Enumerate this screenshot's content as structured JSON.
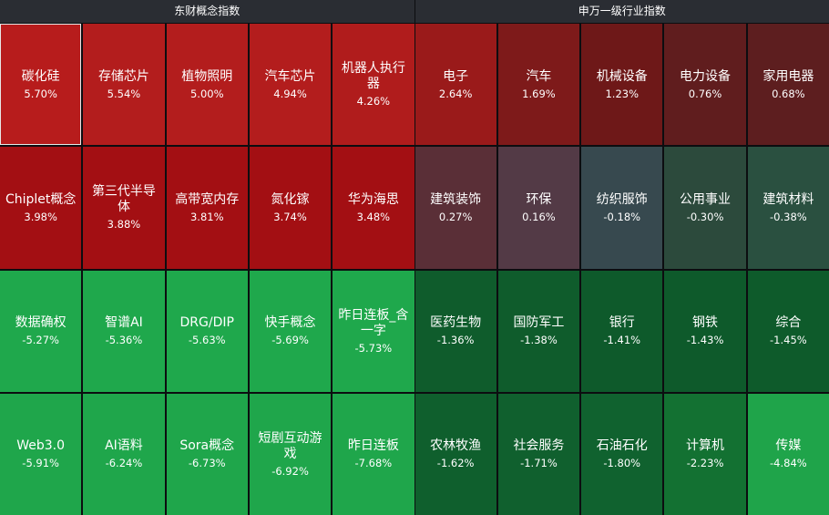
{
  "panels": [
    {
      "title": "东财概念指数",
      "tiles": [
        {
          "name": "碳化硅",
          "change": "5.70%",
          "color": "#b71c1c"
        },
        {
          "name": "存储芯片",
          "change": "5.54%",
          "color": "#b31d1d"
        },
        {
          "name": "植物照明",
          "change": "5.00%",
          "color": "#b31d1d"
        },
        {
          "name": "汽车芯片",
          "change": "4.94%",
          "color": "#b31d1d"
        },
        {
          "name": "机器人执行器",
          "change": "4.26%",
          "color": "#b01c1c"
        },
        {
          "name": "Chiplet概念",
          "change": "3.98%",
          "color": "#a30f13"
        },
        {
          "name": "第三代半导体",
          "change": "3.88%",
          "color": "#a30f13"
        },
        {
          "name": "高带宽内存",
          "change": "3.81%",
          "color": "#a30f13"
        },
        {
          "name": "氮化镓",
          "change": "3.74%",
          "color": "#a30f13"
        },
        {
          "name": "华为海思",
          "change": "3.48%",
          "color": "#a30f13"
        },
        {
          "name": "数据确权",
          "change": "-5.27%",
          "color": "#1fa84c"
        },
        {
          "name": "智谱AI",
          "change": "-5.36%",
          "color": "#1fa84c"
        },
        {
          "name": "DRG/DIP",
          "change": "-5.63%",
          "color": "#1fa84c"
        },
        {
          "name": "快手概念",
          "change": "-5.69%",
          "color": "#1fa84c"
        },
        {
          "name": "昨日连板_含一字",
          "change": "-5.73%",
          "color": "#1fa84c"
        },
        {
          "name": "Web3.0",
          "change": "-5.91%",
          "color": "#1fa64b"
        },
        {
          "name": "AI语料",
          "change": "-6.24%",
          "color": "#1fa64b"
        },
        {
          "name": "Sora概念",
          "change": "-6.73%",
          "color": "#1fa64b"
        },
        {
          "name": "短剧互动游戏",
          "change": "-6.92%",
          "color": "#1fa64b"
        },
        {
          "name": "昨日连板",
          "change": "-7.68%",
          "color": "#1fa64b"
        }
      ]
    },
    {
      "title": "申万一级行业指数",
      "tiles": [
        {
          "name": "电子",
          "change": "2.64%",
          "color": "#9a1a1a"
        },
        {
          "name": "汽车",
          "change": "1.69%",
          "color": "#7e1a1a"
        },
        {
          "name": "机械设备",
          "change": "1.23%",
          "color": "#6e1818"
        },
        {
          "name": "电力设备",
          "change": "0.76%",
          "color": "#601d1e"
        },
        {
          "name": "家用电器",
          "change": "0.68%",
          "color": "#5d1e1f"
        },
        {
          "name": "建筑装饰",
          "change": "0.27%",
          "color": "#5a2f37"
        },
        {
          "name": "环保",
          "change": "0.16%",
          "color": "#533a46"
        },
        {
          "name": "纺织服饰",
          "change": "-0.18%",
          "color": "#37494f"
        },
        {
          "name": "公用事业",
          "change": "-0.30%",
          "color": "#2c4a3c"
        },
        {
          "name": "建筑材料",
          "change": "-0.38%",
          "color": "#2a5040"
        },
        {
          "name": "医药生物",
          "change": "-1.36%",
          "color": "#0f5c2c"
        },
        {
          "name": "国防军工",
          "change": "-1.38%",
          "color": "#0f5c2c"
        },
        {
          "name": "银行",
          "change": "-1.41%",
          "color": "#0e5a2b"
        },
        {
          "name": "钢铁",
          "change": "-1.43%",
          "color": "#0e5a2b"
        },
        {
          "name": "综合",
          "change": "-1.45%",
          "color": "#0e5b2b"
        },
        {
          "name": "农林牧渔",
          "change": "-1.62%",
          "color": "#0f5f2d"
        },
        {
          "name": "社会服务",
          "change": "-1.71%",
          "color": "#10602e"
        },
        {
          "name": "石油石化",
          "change": "-1.80%",
          "color": "#10622f"
        },
        {
          "name": "计算机",
          "change": "-2.23%",
          "color": "#137132"
        },
        {
          "name": "传媒",
          "change": "-4.84%",
          "color": "#1fa44a"
        }
      ]
    }
  ]
}
